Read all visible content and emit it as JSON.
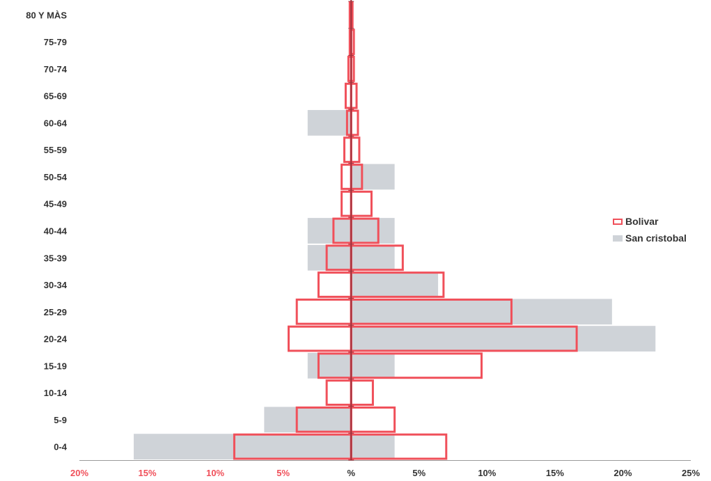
{
  "chart_data": {
    "type": "bar",
    "orientation": "horizontal-pyramid",
    "categories": [
      "0-4",
      "5-9",
      "10-14",
      "15-19",
      "20-24",
      "25-29",
      "30-34",
      "35-39",
      "40-44",
      "45-49",
      "50-54",
      "55-59",
      "60-64",
      "65-69",
      "70-74",
      "75-79",
      "80 Y MÀS"
    ],
    "x_ticks": [
      "20%",
      "15%",
      "10%",
      "5%",
      "%",
      "5%",
      "10%",
      "15%",
      "20%",
      "25%"
    ],
    "x_range": [
      -20,
      25
    ],
    "legend_position": "right",
    "series": [
      {
        "name": "Bolivar",
        "style": "outline",
        "color": "#f0505a",
        "left": [
          8.6,
          4.0,
          1.8,
          2.4,
          4.6,
          4.0,
          2.4,
          1.8,
          1.3,
          0.7,
          0.7,
          0.5,
          0.3,
          0.4,
          0.2,
          0.1,
          0.1
        ],
        "right": [
          7.0,
          3.2,
          1.6,
          9.6,
          16.6,
          11.8,
          6.8,
          3.8,
          2.0,
          1.5,
          0.8,
          0.6,
          0.5,
          0.4,
          0.2,
          0.2,
          0.1
        ]
      },
      {
        "name": "San cristobal",
        "style": "fill",
        "color": "#cfd3d8",
        "left": [
          16.0,
          6.4,
          0,
          3.2,
          0,
          0,
          0,
          3.2,
          3.2,
          0,
          0,
          0,
          3.2,
          0,
          0,
          0,
          0
        ],
        "right": [
          3.2,
          0,
          0,
          3.2,
          22.4,
          19.2,
          6.4,
          3.2,
          3.2,
          0,
          3.2,
          0,
          0,
          0,
          0,
          0,
          0
        ]
      }
    ],
    "colors": {
      "left_tick": "#f0505a",
      "right_tick": "#333333",
      "center_line": "#a0303a"
    }
  }
}
